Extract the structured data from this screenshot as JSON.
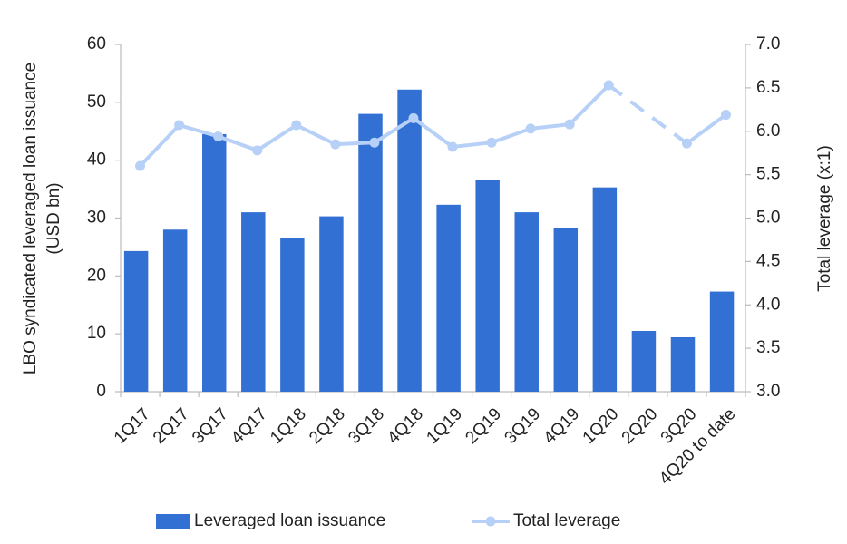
{
  "chart_data": {
    "type": "bar_line",
    "categories": [
      "1Q17",
      "2Q17",
      "3Q17",
      "4Q17",
      "1Q18",
      "2Q18",
      "3Q18",
      "4Q18",
      "1Q19",
      "2Q19",
      "3Q19",
      "4Q19",
      "1Q20",
      "2Q20",
      "3Q20",
      "4Q20 to date"
    ],
    "series": [
      {
        "name": "Leveraged loan issuance",
        "type": "bar",
        "color": "#3370d4",
        "values": [
          24.3,
          28,
          44.5,
          31,
          26.5,
          30.3,
          48,
          52.2,
          32.3,
          36.5,
          31,
          28.3,
          35.3,
          10.5,
          9.4,
          17.3
        ]
      },
      {
        "name": "Total leverage",
        "type": "line",
        "axis": "y2",
        "color": "#b7d0f7",
        "dashed_gaps": true,
        "values": [
          5.6,
          6.07,
          5.94,
          5.78,
          6.07,
          5.85,
          5.87,
          6.15,
          5.82,
          5.87,
          6.03,
          6.08,
          6.53,
          null,
          5.86,
          6.19
        ]
      }
    ],
    "ylabel": [
      "LBO syndicated leveraged loan issuance",
      "(USD bn)"
    ],
    "y2label": "Total leverage (x:1)",
    "ylim": [
      0,
      60
    ],
    "yticks": [
      0,
      10,
      20,
      30,
      40,
      50,
      60
    ],
    "y2lim": [
      3,
      7
    ],
    "y2ticks": [
      {
        "value": 3,
        "label": "3.0"
      },
      3.5,
      {
        "value": 4,
        "label": "4.0"
      },
      4.5,
      {
        "value": 5,
        "label": "5.0"
      },
      5.5,
      {
        "value": 6,
        "label": "6.0"
      },
      6.5,
      {
        "value": 7,
        "label": "7.0"
      }
    ],
    "legend": "bottom",
    "grid": false
  }
}
